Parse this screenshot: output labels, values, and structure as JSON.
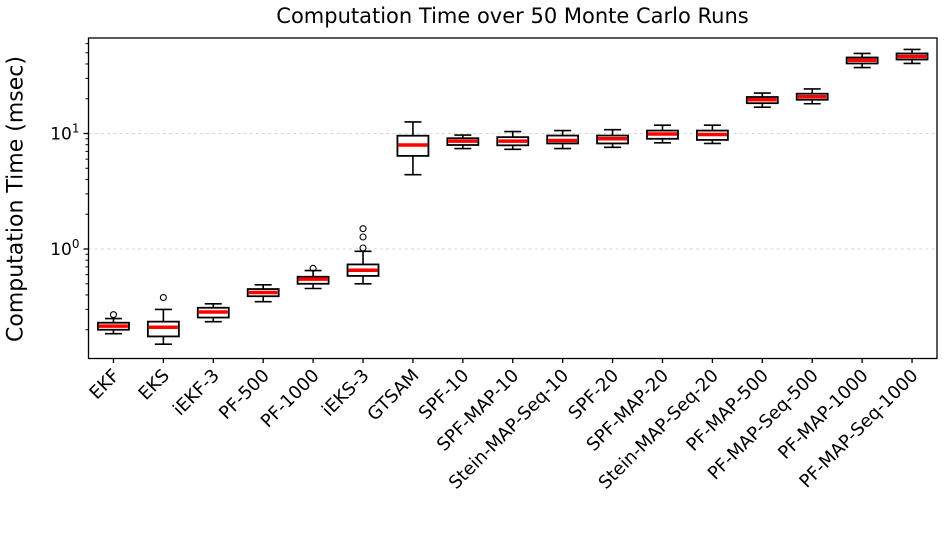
{
  "chart_data": {
    "type": "boxplot",
    "title": "Computation Time over 50 Monte Carlo Runs",
    "ylabel": "Computation Time (msec)",
    "xlabel": "",
    "y_scale": "log",
    "ylim": [
      0.115,
      67
    ],
    "grid": "major-y dashed",
    "x_tick_rotation": 45,
    "y_ticks": [
      {
        "base": "10",
        "exp": "1",
        "value": 10
      },
      {
        "base": "10",
        "exp": "0",
        "value": 1
      }
    ],
    "categories": [
      "EKF",
      "EKS",
      "iEKF-3",
      "PF-500",
      "PF-1000",
      "iEKS-3",
      "GTSAM",
      "SPF-10",
      "SPF-MAP-10",
      "Stein-MAP-Seq-10",
      "SPF-20",
      "SPF-MAP-20",
      "Stein-MAP-Seq-20",
      "PF-MAP-500",
      "PF-MAP-Seq-500",
      "PF-MAP-1000",
      "PF-MAP-Seq-1000"
    ],
    "series": [
      {
        "label": "EKF",
        "whislo": 0.185,
        "q1": 0.2,
        "med": 0.215,
        "q3": 0.23,
        "whishi": 0.25,
        "fliers": [
          0.27
        ]
      },
      {
        "label": "EKS",
        "whislo": 0.15,
        "q1": 0.175,
        "med": 0.21,
        "q3": 0.235,
        "whishi": 0.3,
        "fliers": [
          0.38
        ]
      },
      {
        "label": "iEKF-3",
        "whislo": 0.235,
        "q1": 0.255,
        "med": 0.285,
        "q3": 0.31,
        "whishi": 0.335,
        "fliers": []
      },
      {
        "label": "PF-500",
        "whislo": 0.35,
        "q1": 0.39,
        "med": 0.42,
        "q3": 0.45,
        "whishi": 0.49,
        "fliers": []
      },
      {
        "label": "PF-1000",
        "whislo": 0.455,
        "q1": 0.5,
        "med": 0.548,
        "q3": 0.575,
        "whishi": 0.65,
        "fliers": [
          0.68
        ]
      },
      {
        "label": "iEKS-3",
        "whislo": 0.5,
        "q1": 0.585,
        "med": 0.655,
        "q3": 0.735,
        "whishi": 0.955,
        "fliers": [
          1.02,
          1.27,
          1.5
        ]
      },
      {
        "label": "GTSAM",
        "whislo": 4.4,
        "q1": 6.4,
        "med": 7.96,
        "q3": 9.57,
        "whishi": 12.6,
        "fliers": []
      },
      {
        "label": "SPF-10",
        "whislo": 7.4,
        "q1": 7.95,
        "med": 8.6,
        "q3": 9.1,
        "whishi": 9.7,
        "fliers": []
      },
      {
        "label": "SPF-MAP-10",
        "whislo": 7.3,
        "q1": 7.9,
        "med": 8.6,
        "q3": 9.3,
        "whishi": 10.4,
        "fliers": []
      },
      {
        "label": "Stein-MAP-Seq-10",
        "whislo": 7.4,
        "q1": 8.2,
        "med": 8.7,
        "q3": 9.6,
        "whishi": 10.6,
        "fliers": []
      },
      {
        "label": "SPF-20",
        "whislo": 7.6,
        "q1": 8.2,
        "med": 9.0,
        "q3": 9.6,
        "whishi": 10.8,
        "fliers": []
      },
      {
        "label": "SPF-MAP-20",
        "whislo": 8.3,
        "q1": 9.0,
        "med": 9.9,
        "q3": 10.6,
        "whishi": 11.8,
        "fliers": []
      },
      {
        "label": "Stein-MAP-Seq-20",
        "whislo": 8.2,
        "q1": 8.8,
        "med": 9.8,
        "q3": 10.6,
        "whishi": 11.8,
        "fliers": []
      },
      {
        "label": "PF-MAP-500",
        "whislo": 16.9,
        "q1": 18.3,
        "med": 19.6,
        "q3": 20.7,
        "whishi": 22.4,
        "fliers": []
      },
      {
        "label": "PF-MAP-Seq-500",
        "whislo": 18.1,
        "q1": 19.6,
        "med": 20.8,
        "q3": 22.1,
        "whishi": 24.3,
        "fliers": []
      },
      {
        "label": "PF-MAP-1000",
        "whislo": 37.2,
        "q1": 40.4,
        "med": 43.1,
        "q3": 45.5,
        "whishi": 49.3,
        "fliers": []
      },
      {
        "label": "PF-MAP-Seq-1000",
        "whislo": 40.4,
        "q1": 43.7,
        "med": 46.4,
        "q3": 49.3,
        "whishi": 53.4,
        "fliers": []
      }
    ],
    "colors": {
      "median": "#ff0000",
      "box_edge": "#000000",
      "box_fill": "#ffffff",
      "whisker": "#000000",
      "flier_edge": "#000000",
      "grid": "#d8d8d8",
      "axis": "#000000",
      "text": "#000000",
      "background": "#ffffff"
    }
  }
}
